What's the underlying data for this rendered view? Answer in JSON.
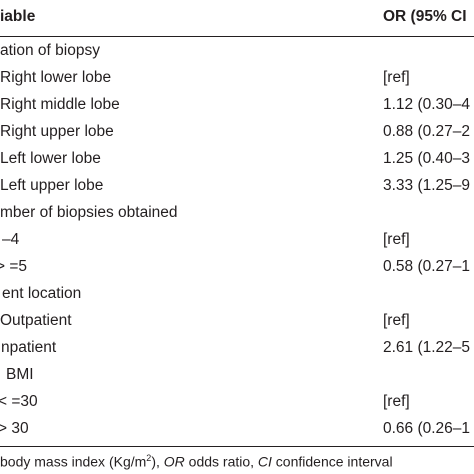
{
  "header": {
    "variable": "iable",
    "or": "OR (95% CI"
  },
  "rows": [
    {
      "label": "ation of biopsy",
      "value": ""
    },
    {
      "label": "Right lower lobe",
      "value": "[ref]"
    },
    {
      "label": "Right middle lobe",
      "value": "1.12 (0.30–4"
    },
    {
      "label": "Right upper lobe",
      "value": "0.88 (0.27–2"
    },
    {
      "label": "Left lower lobe",
      "value": "1.25 (0.40–3"
    },
    {
      "label": "Left upper lobe",
      "value": "3.33 (1.25–9"
    },
    {
      "label": "mber of biopsies obtained",
      "value": ""
    },
    {
      "label": "–4",
      "value": "[ref]"
    },
    {
      "label": "> =5",
      "value": "0.58 (0.27–1"
    },
    {
      "label": "ent location",
      "value": ""
    },
    {
      "label": "Outpatient",
      "value": "[ref]"
    },
    {
      "label": "npatient",
      "value": "2.61 (1.22–5"
    },
    {
      "label": "BMI",
      "value": ""
    },
    {
      "label": "< =30",
      "value": "[ref]"
    },
    {
      "label": "> 30",
      "value": "0.66 (0.26–1"
    }
  ],
  "footnote": {
    "part1": " body mass index (Kg/m",
    "sup": "2",
    "part2": "), ",
    "or_abbr": "OR",
    "part3": " odds ratio, ",
    "ci_abbr": "CI",
    "part4": " confidence interval"
  }
}
